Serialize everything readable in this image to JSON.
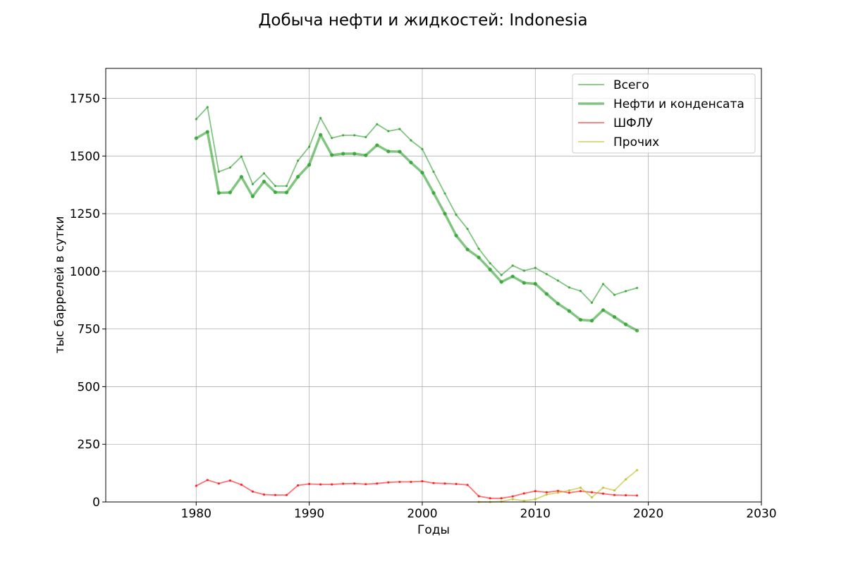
{
  "chart_data": {
    "type": "line",
    "title": "Добыча нефти и жидкостей: Indonesia",
    "xlabel": "Годы",
    "ylabel": "тыс баррелей в сутки",
    "xlim": [
      1972,
      2030
    ],
    "ylim": [
      0,
      1880
    ],
    "xticks": [
      1980,
      1990,
      2000,
      2010,
      2020,
      2030
    ],
    "yticks": [
      0,
      250,
      500,
      750,
      1000,
      1250,
      1500,
      1750
    ],
    "grid": true,
    "legend_position": "top-right",
    "series": [
      {
        "name": "Всего",
        "color": "#2ca02c",
        "x": [
          1980,
          1981,
          1982,
          1983,
          1984,
          1985,
          1986,
          1987,
          1988,
          1989,
          1990,
          1991,
          1992,
          1993,
          1994,
          1995,
          1996,
          1997,
          1998,
          1999,
          2000,
          2001,
          2002,
          2003,
          2004,
          2005,
          2006,
          2007,
          2008,
          2009,
          2010,
          2011,
          2012,
          2013,
          2014,
          2015,
          2016,
          2017,
          2018,
          2019
        ],
        "y": [
          1660,
          1712,
          1432,
          1450,
          1498,
          1378,
          1425,
          1370,
          1370,
          1480,
          1540,
          1665,
          1578,
          1590,
          1590,
          1582,
          1638,
          1608,
          1617,
          1568,
          1530,
          1432,
          1338,
          1245,
          1184,
          1098,
          1035,
          984,
          1025,
          1003,
          1015,
          988,
          960,
          930,
          915,
          864,
          945,
          898,
          914,
          928
        ]
      },
      {
        "name": "Нефти и конденсата",
        "color": "#2ca02c",
        "x": [
          1980,
          1981,
          1982,
          1983,
          1984,
          1985,
          1986,
          1987,
          1988,
          1989,
          1990,
          1991,
          1992,
          1993,
          1994,
          1995,
          1996,
          1997,
          1998,
          1999,
          2000,
          2001,
          2002,
          2003,
          2004,
          2005,
          2006,
          2007,
          2008,
          2009,
          2010,
          2011,
          2012,
          2013,
          2014,
          2015,
          2016,
          2017,
          2018,
          2019
        ],
        "y": [
          1577,
          1605,
          1340,
          1342,
          1410,
          1325,
          1390,
          1343,
          1342,
          1410,
          1462,
          1592,
          1504,
          1510,
          1510,
          1503,
          1547,
          1520,
          1519,
          1472,
          1428,
          1340,
          1250,
          1155,
          1095,
          1060,
          1008,
          954,
          978,
          950,
          946,
          902,
          860,
          828,
          790,
          786,
          832,
          802,
          770,
          743
        ]
      },
      {
        "name": "ШФЛУ",
        "color": "#ff0000",
        "x": [
          1980,
          1981,
          1982,
          1983,
          1984,
          1985,
          1986,
          1987,
          1988,
          1989,
          1990,
          1991,
          1992,
          1993,
          1994,
          1995,
          1996,
          1997,
          1998,
          1999,
          2000,
          2001,
          2002,
          2003,
          2004,
          2005,
          2006,
          2007,
          2008,
          2009,
          2010,
          2011,
          2012,
          2013,
          2014,
          2015,
          2016,
          2017,
          2018,
          2019
        ],
        "y": [
          70,
          95,
          80,
          93,
          75,
          45,
          32,
          30,
          30,
          72,
          78,
          76,
          76,
          79,
          80,
          77,
          80,
          85,
          87,
          87,
          90,
          82,
          80,
          78,
          74,
          25,
          16,
          16,
          24,
          37,
          47,
          42,
          48,
          40,
          47,
          42,
          36,
          30,
          29,
          28
        ]
      },
      {
        "name": "Прочих",
        "color": "#bcbd22",
        "x": [
          2005,
          2006,
          2007,
          2008,
          2009,
          2010,
          2011,
          2012,
          2013,
          2014,
          2015,
          2016,
          2017,
          2018,
          2019
        ],
        "y": [
          0,
          0,
          2,
          12,
          5,
          12,
          32,
          40,
          50,
          62,
          20,
          62,
          50,
          98,
          138
        ]
      }
    ]
  }
}
